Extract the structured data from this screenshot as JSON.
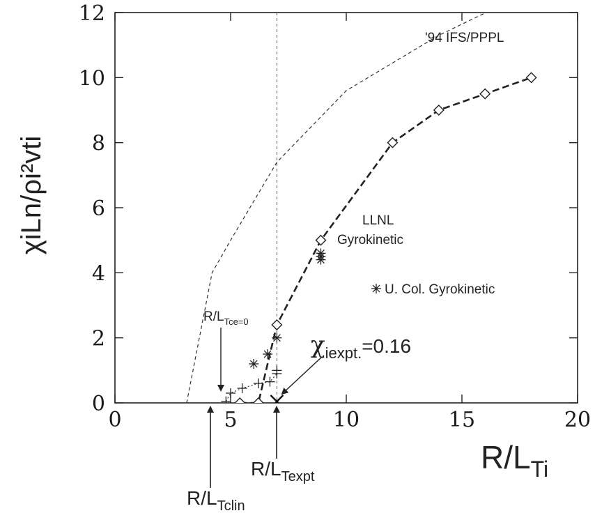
{
  "chart_data": {
    "type": "line",
    "xlabel_main": "R/L",
    "xlabel_sub": "Ti",
    "ylabel": "χiLn/ρi²vti",
    "xlim": [
      0,
      20
    ],
    "ylim": [
      0,
      12
    ],
    "x_ticks": [
      0,
      5,
      10,
      15,
      20
    ],
    "y_ticks": [
      0,
      2,
      4,
      6,
      8,
      10,
      12
    ],
    "grid": false,
    "series": [
      {
        "name": "'94 IFS/PPPL",
        "style": "thin-dashed",
        "x": [
          3.1,
          4.2,
          5.0,
          7.0,
          10.0,
          14.0,
          17.5
        ],
        "y": [
          0,
          4.0,
          5.0,
          7.4,
          9.6,
          11.3,
          12.5
        ]
      },
      {
        "name": "LLNL Gyrokinetic",
        "style": "bold-dashed-diamond",
        "x": [
          5.4,
          6.2,
          7.0,
          8.9,
          12.0,
          14.0,
          16.0,
          18.0
        ],
        "y": [
          0,
          0,
          2.4,
          5.0,
          8.0,
          9.0,
          9.5,
          10.0
        ]
      },
      {
        "name": "U. Col. Gyrokinetic",
        "style": "asterisk",
        "x": [
          6.0,
          6.6,
          7.0,
          8.9,
          8.9,
          8.9
        ],
        "y": [
          1.2,
          1.5,
          2.0,
          4.4,
          4.5,
          4.6
        ]
      },
      {
        "name": "",
        "style": "plus-dotted",
        "x": [
          4.8,
          5.0,
          5.5,
          6.2,
          6.7,
          7.0,
          7.0
        ],
        "y": [
          0.05,
          0.3,
          0.45,
          0.6,
          0.65,
          0.9,
          1.0
        ]
      }
    ],
    "markers": [
      {
        "label": "χiexpt.=0.16",
        "x": 7.0,
        "y": 0.0
      }
    ],
    "reference_lines": [
      {
        "label": "R/LTexpt",
        "x": 7.0
      },
      {
        "label": "R/LTclin",
        "x": 4.5
      },
      {
        "label": "R/LTce=0",
        "x": 4.8
      }
    ],
    "annotations": {
      "ifs": "'94 IFS/PPPL",
      "llnl_line1": "LLNL",
      "llnl_line2": "Gyrokinetic",
      "ucol": "U. Col. Gyrokinetic",
      "chi_main": "χ",
      "chi_sub": "iexpt.",
      "chi_value": "=0.16",
      "rltce_main": "R/L",
      "rltce_sub": "Tce=0",
      "rlexpt_main": "R/L",
      "rlexpt_sub": "Texpt",
      "rlclin_main": "R/L",
      "rlclin_sub": "Tclin"
    }
  }
}
